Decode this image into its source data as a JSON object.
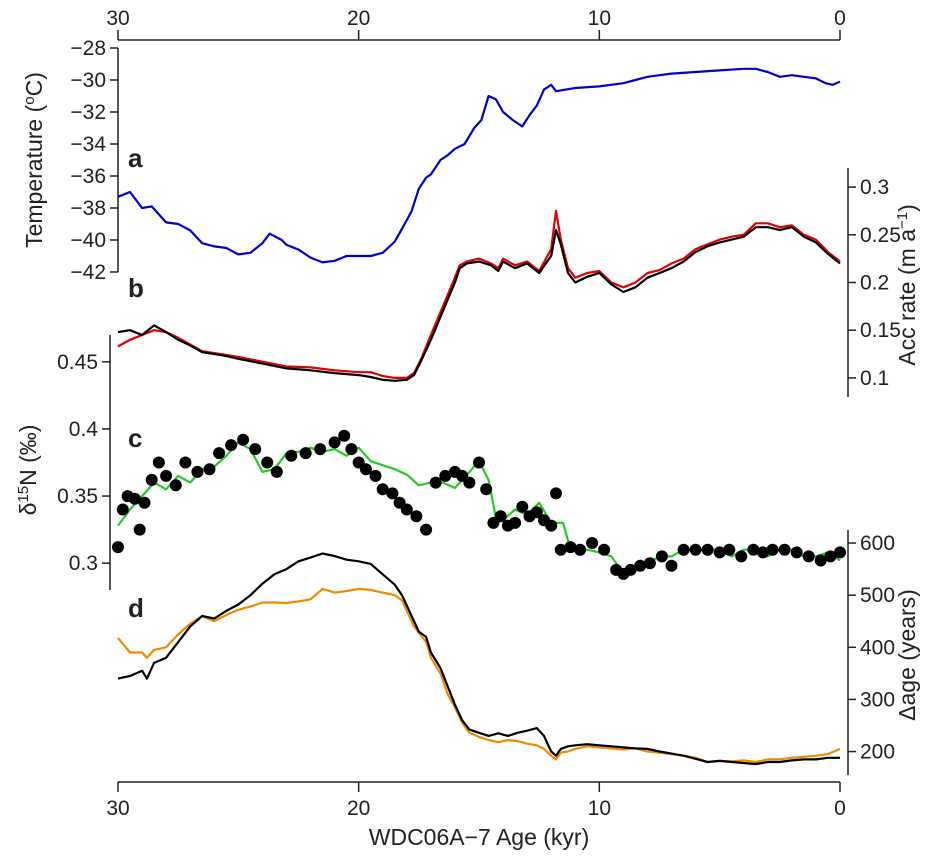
{
  "chart_data": [
    {
      "panel": "a",
      "type": "line",
      "ylabel_prefix": "Temperature (",
      "ylabel_sup": "o",
      "ylabel_suffix": "C)",
      "ylim": [
        -42,
        -28
      ],
      "yticks": [
        "-28",
        "-30",
        "-32",
        "-34",
        "-36",
        "-38",
        "-40",
        "-42"
      ],
      "xlim": [
        30,
        0
      ],
      "series": [
        {
          "color": "#0000cc",
          "x": [
            30,
            29.5,
            29,
            28.6,
            28,
            27.5,
            27,
            26.5,
            26,
            25.5,
            25,
            24.5,
            24,
            23.7,
            23.2,
            23,
            22.5,
            22,
            21.5,
            21,
            20.5,
            20,
            19.5,
            19,
            18.5,
            18.2,
            17.8,
            17.5,
            17.2,
            17,
            16.6,
            16.3,
            16,
            15.6,
            15.2,
            14.9,
            14.6,
            14.3,
            14,
            13.6,
            13.2,
            12.9,
            12.6,
            12.3,
            12,
            11.8,
            11,
            10,
            9,
            8.5,
            8,
            7.5,
            7,
            6,
            5,
            4,
            3.5,
            3,
            2.5,
            2,
            1.5,
            1,
            0.6,
            0.3,
            0
          ],
          "y": [
            -37.3,
            -37,
            -38,
            -37.9,
            -38.9,
            -39,
            -39.4,
            -40.2,
            -40.4,
            -40.5,
            -40.9,
            -40.8,
            -40.2,
            -39.6,
            -40,
            -40.3,
            -40.6,
            -41.1,
            -41.4,
            -41.3,
            -41,
            -41,
            -41,
            -40.8,
            -40.1,
            -39.3,
            -38.2,
            -36.8,
            -36.1,
            -35.9,
            -35,
            -34.7,
            -34.3,
            -34,
            -33,
            -32.5,
            -31,
            -31.2,
            -32,
            -32.5,
            -32.9,
            -32.2,
            -31.6,
            -30.6,
            -30.3,
            -30.7,
            -30.5,
            -30.4,
            -30.2,
            -30,
            -29.8,
            -29.7,
            -29.6,
            -29.5,
            -29.4,
            -29.3,
            -29.3,
            -29.5,
            -29.8,
            -29.7,
            -29.8,
            -29.9,
            -30.2,
            -30.3,
            -30.1
          ]
        }
      ]
    },
    {
      "panel": "b",
      "type": "line",
      "ylabel_prefix": "Acc rate (m a",
      "ylabel_sup": "−1",
      "ylabel_suffix": ")",
      "ylim": [
        0.08,
        0.32
      ],
      "yticks": [
        "0.1",
        "0.15",
        "0.2",
        "0.25",
        "0.3"
      ],
      "xlim": [
        30,
        0
      ],
      "series": [
        {
          "color": "#e00000",
          "x": [
            30,
            29.5,
            29,
            28.5,
            28,
            27.5,
            27,
            26.5,
            26,
            25.5,
            25,
            24,
            23,
            22,
            21,
            20,
            19.5,
            19,
            18.5,
            18,
            17.7,
            17.4,
            17,
            16.5,
            16,
            15.8,
            15.5,
            15,
            14.5,
            14.2,
            14,
            13.5,
            13,
            12.5,
            12,
            11.8,
            11.6,
            11.3,
            11,
            10.5,
            10,
            9.5,
            9,
            8.5,
            8,
            7.5,
            7,
            6.5,
            6,
            5.5,
            5,
            4.5,
            4,
            3.5,
            3,
            2.5,
            2,
            1.5,
            1,
            0.5,
            0
          ],
          "y": [
            0.133,
            0.14,
            0.145,
            0.15,
            0.148,
            0.142,
            0.135,
            0.128,
            0.126,
            0.124,
            0.122,
            0.117,
            0.112,
            0.111,
            0.108,
            0.106,
            0.106,
            0.102,
            0.1,
            0.1,
            0.105,
            0.12,
            0.145,
            0.175,
            0.205,
            0.218,
            0.222,
            0.225,
            0.22,
            0.215,
            0.225,
            0.218,
            0.222,
            0.212,
            0.235,
            0.275,
            0.245,
            0.215,
            0.205,
            0.21,
            0.212,
            0.2,
            0.195,
            0.2,
            0.21,
            0.213,
            0.22,
            0.225,
            0.235,
            0.24,
            0.245,
            0.248,
            0.25,
            0.262,
            0.262,
            0.258,
            0.26,
            0.25,
            0.245,
            0.232,
            0.222
          ]
        },
        {
          "color": "#000000",
          "x": [
            30,
            29.5,
            29,
            28.5,
            28,
            27.5,
            27,
            26.5,
            26,
            25.5,
            25,
            24,
            23,
            22,
            21,
            20,
            19.5,
            19,
            18.5,
            18,
            17.7,
            17.4,
            17,
            16.5,
            16,
            15.8,
            15.5,
            15,
            14.5,
            14.2,
            14,
            13.5,
            13,
            12.5,
            12,
            11.8,
            11.6,
            11.3,
            11,
            10.5,
            10,
            9.5,
            9,
            8.5,
            8,
            7.5,
            7,
            6.5,
            6,
            5.5,
            5,
            4.5,
            4,
            3.5,
            3,
            2.5,
            2,
            1.5,
            1,
            0.5,
            0
          ],
          "y": [
            0.148,
            0.15,
            0.145,
            0.155,
            0.148,
            0.14,
            0.134,
            0.127,
            0.125,
            0.123,
            0.12,
            0.115,
            0.11,
            0.108,
            0.105,
            0.103,
            0.101,
            0.098,
            0.097,
            0.098,
            0.103,
            0.118,
            0.14,
            0.17,
            0.2,
            0.215,
            0.22,
            0.222,
            0.218,
            0.212,
            0.222,
            0.215,
            0.22,
            0.21,
            0.228,
            0.255,
            0.24,
            0.21,
            0.2,
            0.206,
            0.21,
            0.198,
            0.19,
            0.195,
            0.205,
            0.21,
            0.215,
            0.222,
            0.232,
            0.238,
            0.242,
            0.245,
            0.248,
            0.258,
            0.258,
            0.255,
            0.258,
            0.248,
            0.242,
            0.23,
            0.22
          ]
        }
      ]
    },
    {
      "panel": "c",
      "type": "line+scatter",
      "ylabel_prefix": "δ",
      "ylabel_sup": "15",
      "ylabel_suffix": "N (‰)",
      "ylim": [
        0.28,
        0.47
      ],
      "yticks": [
        "0.45",
        "0.4",
        "0.35",
        "0.3"
      ],
      "xlim": [
        30,
        0
      ],
      "series": [
        {
          "color": "#22cc22",
          "x": [
            30,
            29.5,
            29,
            28.5,
            28,
            27.5,
            27,
            26.5,
            26,
            25.5,
            25,
            24.5,
            24,
            23.5,
            23,
            22.5,
            22,
            21.5,
            21,
            20.5,
            20,
            19.5,
            19,
            18.5,
            18,
            17.5,
            17,
            16.5,
            16,
            15.5,
            15,
            14.6,
            14.3,
            14,
            13.5,
            13,
            12.5,
            12,
            11.5,
            11.2,
            11,
            10.5,
            10,
            9.5,
            9,
            8.5,
            8,
            7.5,
            7,
            6.5,
            6,
            5.5,
            5,
            4.5,
            4,
            3.5,
            3,
            2.5,
            2,
            1.5,
            1,
            0.5,
            0
          ],
          "y": [
            0.328,
            0.34,
            0.35,
            0.36,
            0.355,
            0.365,
            0.36,
            0.37,
            0.372,
            0.38,
            0.39,
            0.385,
            0.368,
            0.37,
            0.382,
            0.383,
            0.386,
            0.383,
            0.385,
            0.38,
            0.386,
            0.376,
            0.373,
            0.37,
            0.366,
            0.358,
            0.36,
            0.36,
            0.356,
            0.366,
            0.376,
            0.362,
            0.334,
            0.332,
            0.34,
            0.336,
            0.345,
            0.33,
            0.33,
            0.31,
            0.31,
            0.31,
            0.308,
            0.305,
            0.292,
            0.298,
            0.3,
            0.305,
            0.305,
            0.31,
            0.31,
            0.31,
            0.31,
            0.305,
            0.31,
            0.31,
            0.305,
            0.31,
            0.31,
            0.305,
            0.305,
            0.308,
            0.302
          ]
        }
      ],
      "points": {
        "color": "#000000",
        "x": [
          30,
          29.8,
          29.6,
          29.3,
          29.1,
          28.9,
          28.6,
          28.3,
          28,
          27.6,
          27.2,
          26.7,
          26.2,
          25.8,
          25.3,
          24.8,
          24.3,
          23.8,
          23.4,
          22.8,
          22.2,
          21.6,
          21,
          20.6,
          20.3,
          20,
          19.7,
          19.3,
          19,
          18.6,
          18.3,
          18,
          17.6,
          17.2,
          16.8,
          16.4,
          16,
          15.7,
          15.4,
          15,
          14.7,
          14.4,
          14.1,
          13.8,
          13.5,
          13.2,
          12.9,
          12.6,
          12.3,
          12,
          11.8,
          11.6,
          11.2,
          10.8,
          10.3,
          9.8,
          9.3,
          9,
          8.7,
          8.3,
          7.9,
          7.4,
          7,
          6.5,
          6,
          5.5,
          5,
          4.6,
          4.1,
          3.6,
          3.2,
          2.8,
          2.3,
          1.8,
          1.3,
          0.8,
          0.4,
          0
        ],
        "y": [
          0.312,
          0.34,
          0.35,
          0.348,
          0.325,
          0.345,
          0.362,
          0.375,
          0.365,
          0.358,
          0.375,
          0.368,
          0.37,
          0.382,
          0.388,
          0.392,
          0.385,
          0.375,
          0.368,
          0.38,
          0.382,
          0.385,
          0.39,
          0.395,
          0.385,
          0.375,
          0.37,
          0.365,
          0.355,
          0.352,
          0.345,
          0.34,
          0.335,
          0.325,
          0.36,
          0.365,
          0.368,
          0.365,
          0.36,
          0.375,
          0.355,
          0.33,
          0.335,
          0.328,
          0.33,
          0.342,
          0.335,
          0.338,
          0.332,
          0.328,
          0.352,
          0.31,
          0.312,
          0.31,
          0.315,
          0.31,
          0.295,
          0.292,
          0.295,
          0.298,
          0.3,
          0.305,
          0.298,
          0.31,
          0.31,
          0.31,
          0.308,
          0.31,
          0.305,
          0.31,
          0.308,
          0.31,
          0.31,
          0.308,
          0.305,
          0.302,
          0.305,
          0.308
        ]
      }
    },
    {
      "panel": "d",
      "type": "line",
      "ylabel_prefix": "Δage (years)",
      "ylabel_sup": "",
      "ylabel_suffix": "",
      "ylim": [
        155,
        625
      ],
      "yticks": [
        "600",
        "500",
        "400",
        "300",
        "200"
      ],
      "xlim": [
        30,
        0
      ],
      "series": [
        {
          "color": "#f08a00",
          "x": [
            30,
            29.5,
            29,
            28.8,
            28.5,
            28,
            27.5,
            27,
            26.5,
            26,
            25.5,
            25,
            24.5,
            24,
            23.5,
            23,
            22.5,
            22,
            21.5,
            21,
            20.5,
            20,
            19.5,
            19,
            18.5,
            18.2,
            18,
            17.7,
            17.5,
            17.2,
            17,
            16.6,
            16.3,
            16,
            15.7,
            15.4,
            15,
            14.6,
            14.2,
            13.8,
            13.4,
            13,
            12.6,
            12.3,
            12,
            11.8,
            11.6,
            11.3,
            11,
            10.5,
            10,
            9.5,
            9,
            8.5,
            8,
            7.5,
            7,
            6.5,
            6,
            5.5,
            5,
            4.5,
            4,
            3.5,
            3,
            2.5,
            2,
            1.5,
            1,
            0.5,
            0
          ],
          "y": [
            418,
            390,
            390,
            380,
            395,
            400,
            425,
            445,
            460,
            450,
            462,
            472,
            478,
            486,
            486,
            485,
            488,
            492,
            512,
            505,
            508,
            512,
            510,
            505,
            500,
            490,
            470,
            440,
            428,
            410,
            380,
            350,
            310,
            285,
            255,
            236,
            228,
            222,
            218,
            222,
            220,
            215,
            212,
            205,
            192,
            185,
            198,
            200,
            205,
            210,
            208,
            206,
            204,
            206,
            200,
            198,
            195,
            192,
            188,
            180,
            182,
            181,
            183,
            180,
            185,
            185,
            188,
            190,
            192,
            195,
            205
          ]
        },
        {
          "color": "#000000",
          "x": [
            30,
            29.5,
            29,
            28.8,
            28.5,
            28,
            27.5,
            27,
            26.5,
            26,
            25.5,
            25,
            24.5,
            24,
            23.5,
            23,
            22.5,
            22,
            21.5,
            21,
            20.5,
            20,
            19.5,
            19,
            18.5,
            18.2,
            18,
            17.7,
            17.5,
            17.2,
            17,
            16.6,
            16.3,
            16,
            15.7,
            15.4,
            15,
            14.6,
            14.2,
            13.8,
            13.4,
            13,
            12.6,
            12.3,
            12,
            11.8,
            11.6,
            11.3,
            11,
            10.5,
            10,
            9.5,
            9,
            8.5,
            8,
            7.5,
            7,
            6.5,
            6,
            5.5,
            5,
            4.5,
            4,
            3.5,
            3,
            2.5,
            2,
            1.5,
            1,
            0.5,
            0
          ],
          "y": [
            340,
            345,
            355,
            340,
            370,
            380,
            410,
            440,
            460,
            455,
            470,
            482,
            500,
            522,
            540,
            550,
            565,
            572,
            580,
            575,
            568,
            565,
            560,
            540,
            520,
            500,
            480,
            450,
            430,
            420,
            390,
            360,
            325,
            290,
            260,
            242,
            236,
            230,
            235,
            230,
            236,
            240,
            245,
            230,
            200,
            192,
            205,
            210,
            212,
            214,
            212,
            210,
            208,
            206,
            205,
            200,
            196,
            192,
            186,
            180,
            182,
            180,
            178,
            176,
            180,
            180,
            183,
            185,
            185,
            188,
            188
          ]
        }
      ]
    }
  ],
  "axes": {
    "xlabel": "WDC06A−7 Age (kyr)",
    "xticks": [
      "30",
      "20",
      "10",
      "0"
    ]
  }
}
